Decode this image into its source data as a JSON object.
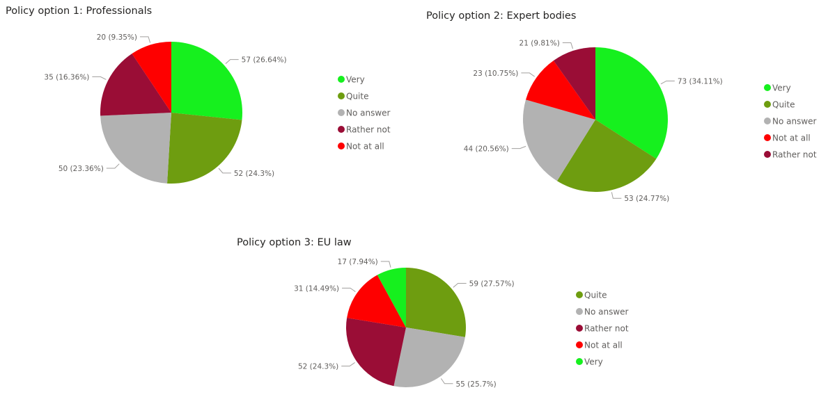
{
  "colors": {
    "Very": "#16F01E",
    "Quite": "#6E9D10",
    "No answer": "#B2B2B2",
    "Rather not": "#9A0D36",
    "Not at all": "#FE0000"
  },
  "chart_data": [
    {
      "type": "pie",
      "title": "Policy option 1: Professionals",
      "slices": [
        {
          "name": "Very",
          "value": 57,
          "label": "57 (26.64%)"
        },
        {
          "name": "Quite",
          "value": 52,
          "label": "52 (24.3%)"
        },
        {
          "name": "No answer",
          "value": 50,
          "label": "50 (23.36%)"
        },
        {
          "name": "Rather not",
          "value": 35,
          "label": "35 (16.36%)"
        },
        {
          "name": "Not at all",
          "value": 20,
          "label": "20 (9.35%)"
        }
      ],
      "legend": [
        "Very",
        "Quite",
        "No answer",
        "Rather not",
        "Not at all"
      ],
      "legend_position": "right"
    },
    {
      "type": "pie",
      "title": "Policy option 2: Expert bodies",
      "slices": [
        {
          "name": "Very",
          "value": 73,
          "label": "73 (34.11%)"
        },
        {
          "name": "Quite",
          "value": 53,
          "label": "53 (24.77%)"
        },
        {
          "name": "No answer",
          "value": 44,
          "label": "44 (20.56%)"
        },
        {
          "name": "Not at all",
          "value": 23,
          "label": "23 (10.75%)"
        },
        {
          "name": "Rather not",
          "value": 21,
          "label": "21 (9.81%)"
        }
      ],
      "legend": [
        "Very",
        "Quite",
        "No answer",
        "Not at all",
        "Rather not"
      ],
      "legend_position": "right"
    },
    {
      "type": "pie",
      "title": "Policy option 3: EU law",
      "slices": [
        {
          "name": "Quite",
          "value": 59,
          "label": "59 (27.57%)"
        },
        {
          "name": "No answer",
          "value": 55,
          "label": "55 (25.7%)"
        },
        {
          "name": "Rather not",
          "value": 52,
          "label": "52 (24.3%)"
        },
        {
          "name": "Not at all",
          "value": 31,
          "label": "31 (14.49%)"
        },
        {
          "name": "Very",
          "value": 17,
          "label": "17 (7.94%)"
        }
      ],
      "legend": [
        "Quite",
        "No answer",
        "Rather not",
        "Not at all",
        "Very"
      ],
      "legend_position": "right"
    }
  ]
}
